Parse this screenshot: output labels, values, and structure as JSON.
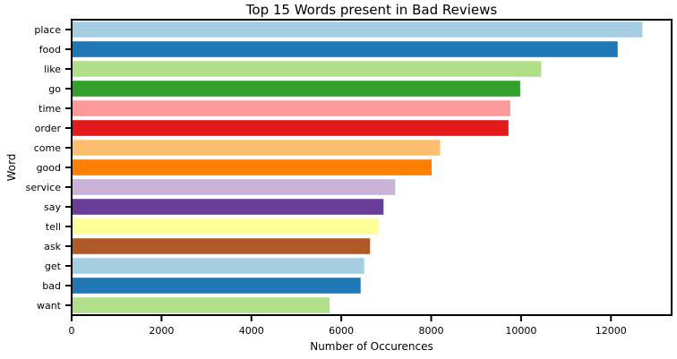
{
  "chart_data": {
    "type": "bar",
    "orientation": "horizontal",
    "title": "Top 15 Words present in Bad Reviews",
    "xlabel": "Number of Occurences",
    "ylabel": "Word",
    "categories": [
      "place",
      "food",
      "like",
      "go",
      "time",
      "order",
      "come",
      "good",
      "service",
      "say",
      "tell",
      "ask",
      "get",
      "bad",
      "want"
    ],
    "values": [
      12700,
      12150,
      10450,
      9980,
      9760,
      9720,
      8200,
      8010,
      7200,
      6940,
      6830,
      6640,
      6510,
      6430,
      5740
    ],
    "xlim": [
      0,
      13350
    ],
    "xticks": [
      0,
      2000,
      4000,
      6000,
      8000,
      10000,
      12000
    ],
    "colors": [
      "#a6cee3",
      "#1f78b4",
      "#b2df8a",
      "#33a02c",
      "#fb9a99",
      "#e31a1c",
      "#fdbf6f",
      "#ff7f00",
      "#cab2d6",
      "#6a3d9a",
      "#ffff99",
      "#b15928",
      "#a6cee3",
      "#1f78b4",
      "#b2df8a"
    ],
    "grid": false,
    "legend": "none"
  }
}
